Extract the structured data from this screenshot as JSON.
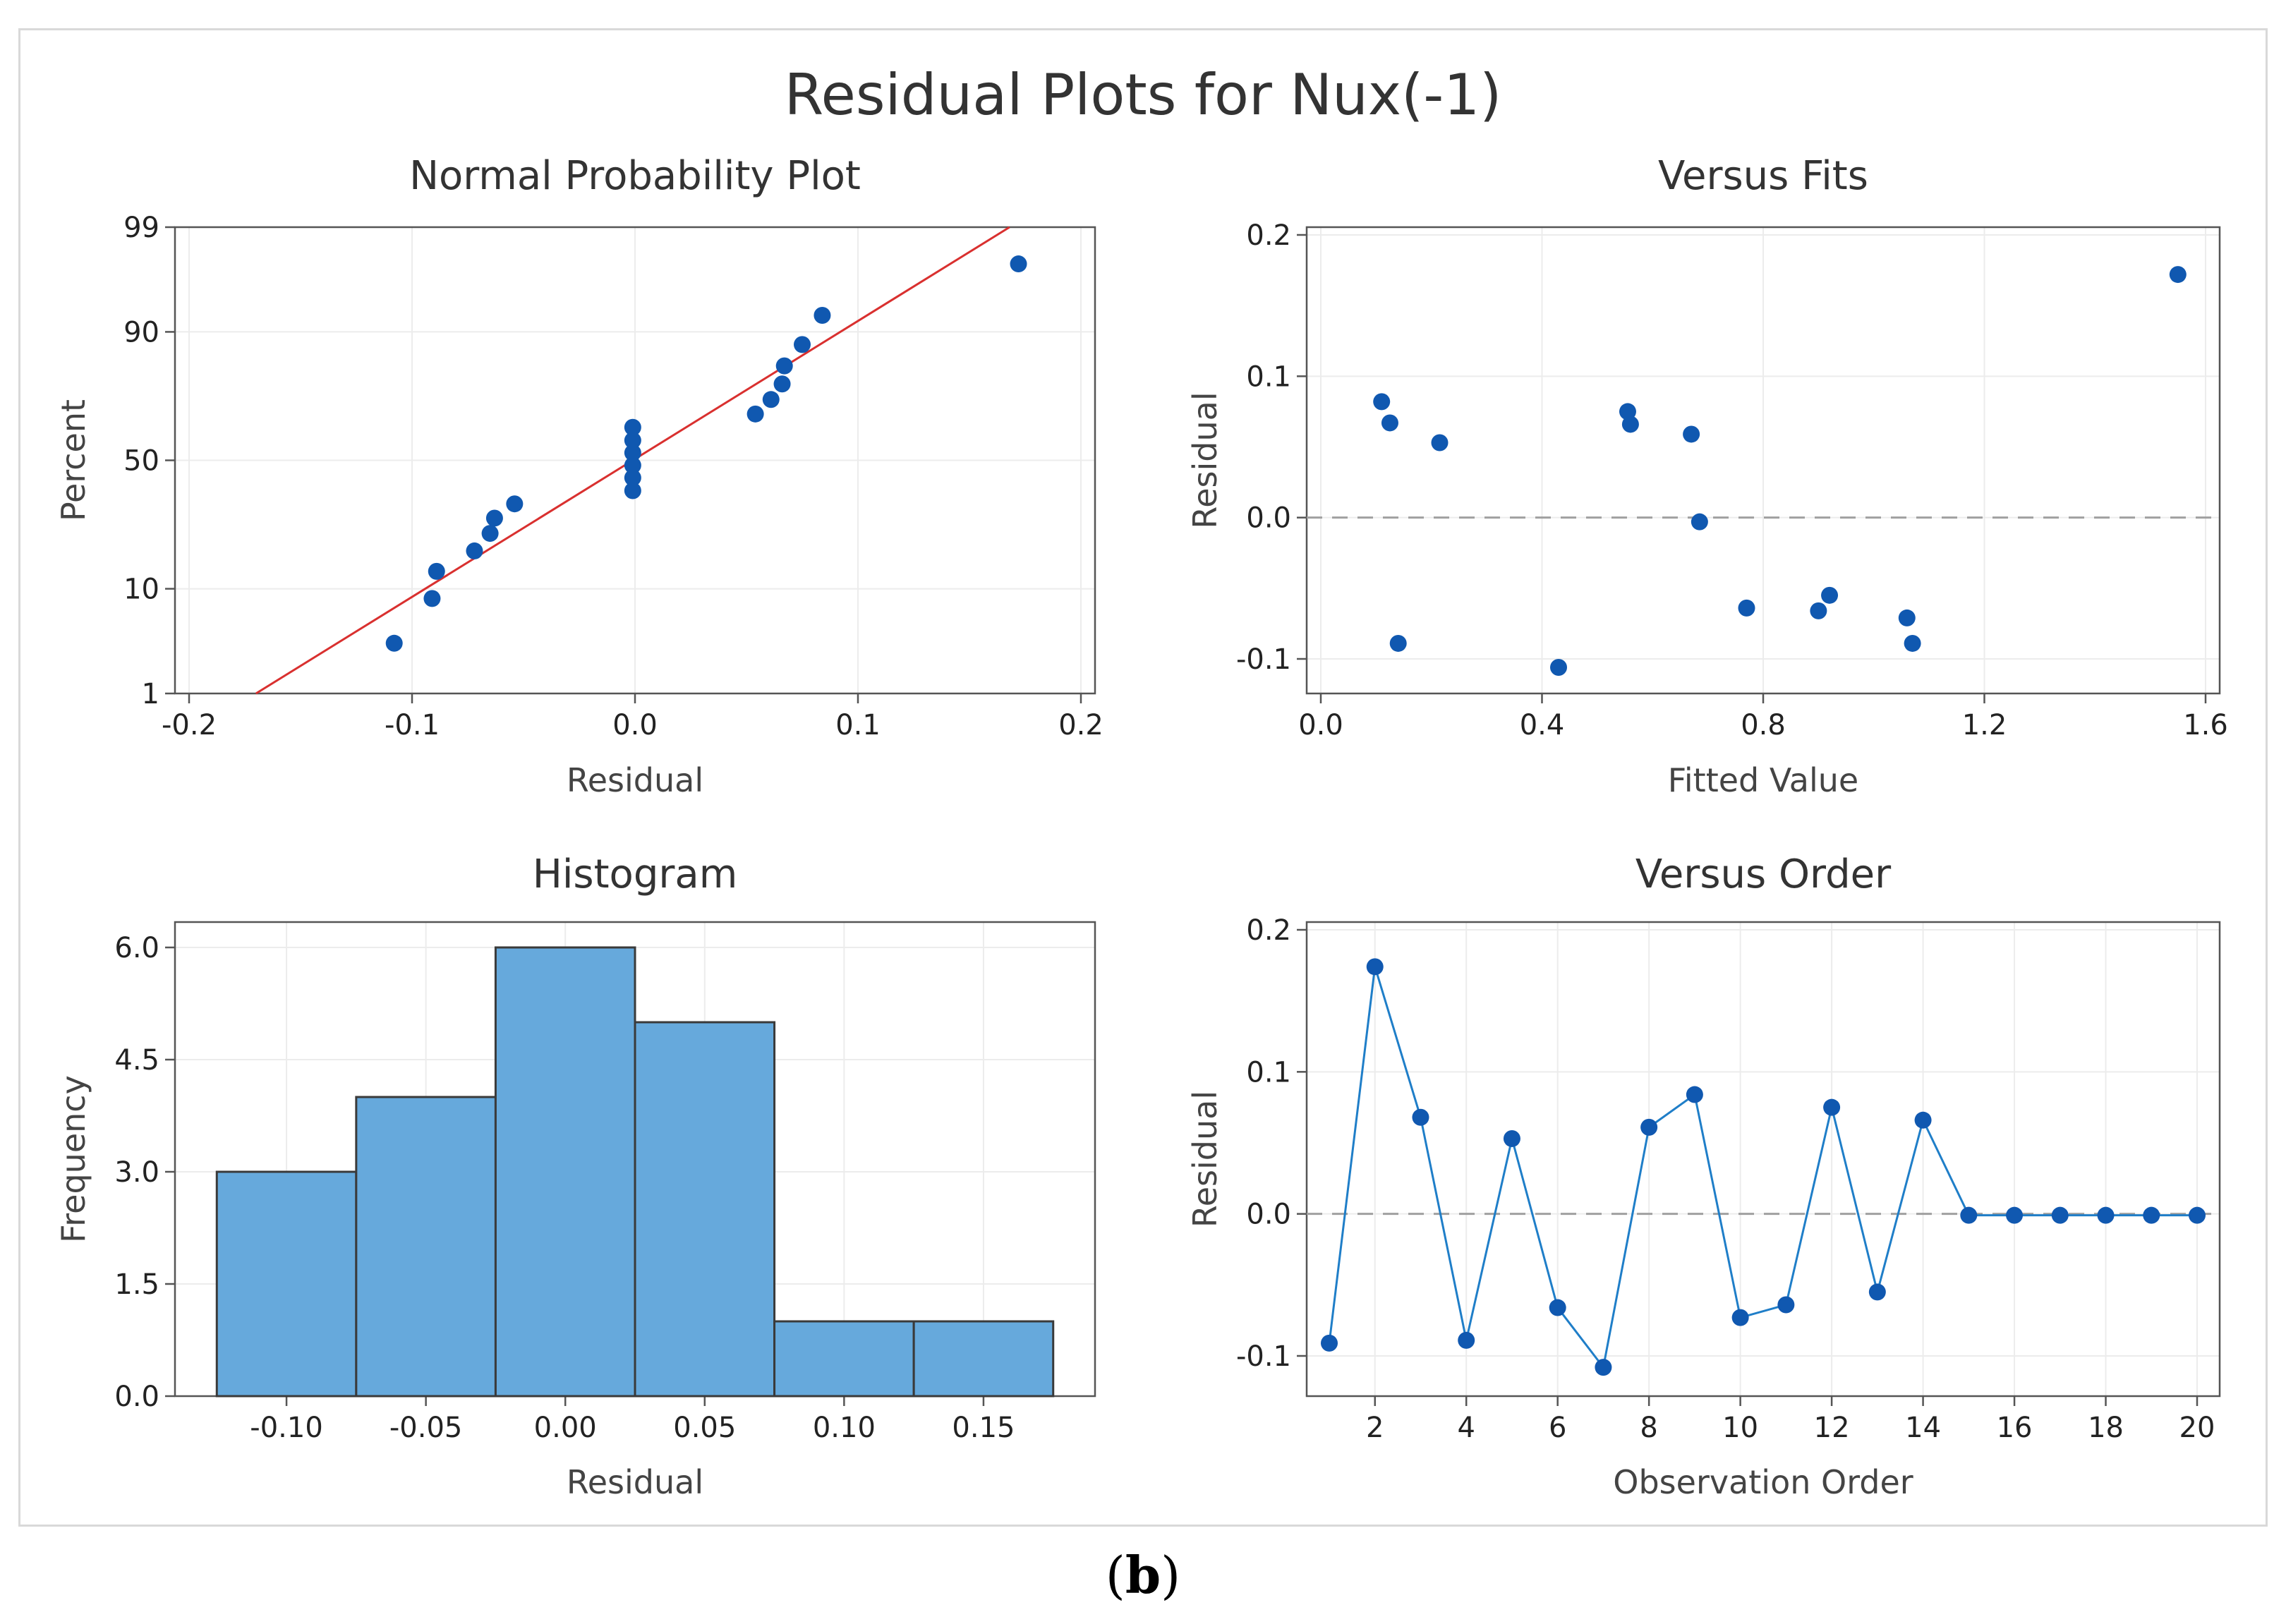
{
  "figure": {
    "title": "Residual Plots for Nux(-1)",
    "caption_open": "(",
    "caption_letter": "b",
    "caption_close": ")"
  },
  "colors": {
    "point": "#1058b0",
    "fit_line": "#d9302f",
    "bar_fill": "#66a9dc",
    "bar_edge": "#3a3a3a",
    "zero_line": "#a0a0a0",
    "order_line": "#1f7ec8",
    "grid": "#ececec",
    "axis": "#555555"
  },
  "chart_data": [
    {
      "type": "scatter",
      "title": "Normal Probability Plot",
      "xlabel": "Residual",
      "ylabel": "Percent",
      "xlim": [
        -0.2,
        0.2
      ],
      "x_ticks": [
        -0.2,
        -0.1,
        0.0,
        0.1,
        0.2
      ],
      "x_tick_labels": [
        "-0.2",
        "-0.1",
        "0.0",
        "0.1",
        "0.2"
      ],
      "y_scale": "normal-probability",
      "y_ticks": [
        1,
        10,
        50,
        90,
        99
      ],
      "y_tick_labels": [
        "1",
        "10",
        "50",
        "90",
        "99"
      ],
      "grid": true,
      "points": [
        {
          "x": -0.108,
          "percent": 3.4
        },
        {
          "x": -0.091,
          "percent": 8.4
        },
        {
          "x": -0.089,
          "percent": 13.4
        },
        {
          "x": -0.072,
          "percent": 18.3
        },
        {
          "x": -0.065,
          "percent": 23.3
        },
        {
          "x": -0.063,
          "percent": 28.2
        },
        {
          "x": -0.054,
          "percent": 33.2
        },
        {
          "x": -0.001,
          "percent": 38.1
        },
        {
          "x": -0.001,
          "percent": 43.1
        },
        {
          "x": -0.001,
          "percent": 48.0
        },
        {
          "x": -0.001,
          "percent": 53.0
        },
        {
          "x": -0.001,
          "percent": 57.9
        },
        {
          "x": -0.001,
          "percent": 62.9
        },
        {
          "x": 0.054,
          "percent": 67.8
        },
        {
          "x": 0.061,
          "percent": 72.8
        },
        {
          "x": 0.066,
          "percent": 77.7
        },
        {
          "x": 0.067,
          "percent": 82.7
        },
        {
          "x": 0.075,
          "percent": 87.6
        },
        {
          "x": 0.084,
          "percent": 92.6
        },
        {
          "x": 0.172,
          "percent": 97.5
        }
      ],
      "fit_line": {
        "x_at_1_percent": -0.17,
        "x_at_99_percent": 0.168
      }
    },
    {
      "type": "scatter",
      "title": "Versus Fits",
      "xlabel": "Fitted Value",
      "ylabel": "Residual",
      "xlim": [
        0.0,
        1.6
      ],
      "ylim": [
        -0.1,
        0.2
      ],
      "x_ticks": [
        0.0,
        0.4,
        0.8,
        1.2,
        1.6
      ],
      "x_tick_labels": [
        "0.0",
        "0.4",
        "0.8",
        "1.2",
        "1.6"
      ],
      "y_ticks": [
        -0.1,
        0.0,
        0.1,
        0.2
      ],
      "y_tick_labels": [
        "-0.1",
        "0.0",
        "0.1",
        "0.2"
      ],
      "reference_line_y": 0.0,
      "grid": true,
      "points": [
        {
          "x": 0.11,
          "y": 0.082
        },
        {
          "x": 0.125,
          "y": 0.067
        },
        {
          "x": 0.14,
          "y": -0.089
        },
        {
          "x": 0.215,
          "y": 0.053
        },
        {
          "x": 0.43,
          "y": -0.106
        },
        {
          "x": 0.555,
          "y": 0.075
        },
        {
          "x": 0.56,
          "y": 0.066
        },
        {
          "x": 0.67,
          "y": 0.059
        },
        {
          "x": 0.685,
          "y": -0.003
        },
        {
          "x": 0.77,
          "y": -0.064
        },
        {
          "x": 0.9,
          "y": -0.066
        },
        {
          "x": 0.92,
          "y": -0.055
        },
        {
          "x": 1.06,
          "y": -0.071
        },
        {
          "x": 1.07,
          "y": -0.089
        },
        {
          "x": 1.55,
          "y": 0.172
        }
      ]
    },
    {
      "type": "bar",
      "title": "Histogram",
      "xlabel": "Residual",
      "ylabel": "Frequency",
      "bin_edges": [
        -0.125,
        -0.075,
        -0.025,
        0.025,
        0.075,
        0.125,
        0.175
      ],
      "values": [
        3,
        4,
        6,
        5,
        1,
        1
      ],
      "xlim": [
        -0.14,
        0.19
      ],
      "ylim": [
        0,
        6.2
      ],
      "x_ticks": [
        -0.1,
        -0.05,
        0.0,
        0.05,
        0.1,
        0.15
      ],
      "x_tick_labels": [
        "-0.10",
        "-0.05",
        "0.00",
        "0.05",
        "0.10",
        "0.15"
      ],
      "y_ticks": [
        0,
        1.5,
        3.0,
        4.5,
        6.0
      ],
      "y_tick_labels": [
        "0.0",
        "1.5",
        "3.0",
        "4.5",
        "6.0"
      ],
      "grid": true
    },
    {
      "type": "line",
      "title": "Versus Order",
      "xlabel": "Observation Order",
      "ylabel": "Residual",
      "xlim": [
        1,
        20
      ],
      "ylim": [
        -0.1,
        0.2
      ],
      "x_ticks": [
        2,
        4,
        6,
        8,
        10,
        12,
        14,
        16,
        18,
        20
      ],
      "x_tick_labels": [
        "2",
        "4",
        "6",
        "8",
        "10",
        "12",
        "14",
        "16",
        "18",
        "20"
      ],
      "y_ticks": [
        -0.1,
        0.0,
        0.1,
        0.2
      ],
      "y_tick_labels": [
        "-0.1",
        "0.0",
        "0.1",
        "0.2"
      ],
      "reference_line_y": 0.0,
      "grid": true,
      "x": [
        1,
        2,
        3,
        4,
        5,
        6,
        7,
        8,
        9,
        10,
        11,
        12,
        13,
        14,
        15,
        16,
        17,
        18,
        19,
        20
      ],
      "y": [
        -0.091,
        0.174,
        0.068,
        -0.089,
        0.053,
        -0.066,
        -0.108,
        0.061,
        0.084,
        -0.073,
        -0.064,
        0.075,
        -0.055,
        0.066,
        -0.001,
        -0.001,
        -0.001,
        -0.001,
        -0.001,
        -0.001
      ]
    }
  ]
}
